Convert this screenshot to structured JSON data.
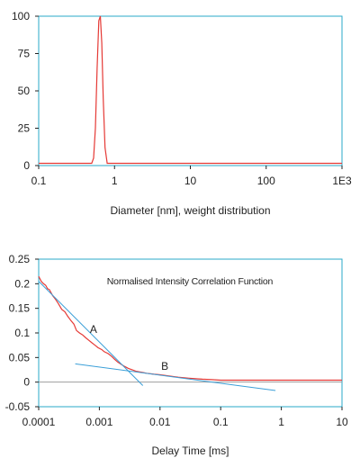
{
  "chart_data": [
    {
      "type": "line",
      "title": "",
      "xlabel": "Diameter [nm], weight distribution",
      "ylabel": "",
      "x_scale": "log",
      "xlim": [
        0.1,
        1000
      ],
      "ylim": [
        0,
        100
      ],
      "x_ticks": [
        0.1,
        1,
        10,
        100,
        1000
      ],
      "x_tick_labels": [
        "0.1",
        "1",
        "10",
        "100",
        "1E3"
      ],
      "y_ticks": [
        0,
        25,
        50,
        75,
        100
      ],
      "y_tick_labels": [
        "0",
        "25",
        "50",
        "75",
        "100"
      ],
      "grid": false,
      "baseline_value": 1.5,
      "colors": {
        "curve": "#e53935",
        "frame": "#2aa9c9"
      },
      "series": [
        {
          "x": [
            0.1,
            0.5,
            0.53,
            0.56,
            0.59,
            0.62,
            0.65,
            0.68,
            0.71,
            0.75,
            0.8,
            1000
          ],
          "values": [
            1.5,
            1.5,
            5,
            25,
            65,
            97,
            100,
            82,
            45,
            12,
            1.5,
            1.5
          ]
        }
      ]
    },
    {
      "type": "line",
      "title": "Normalised Intensity Correlation Function",
      "xlabel": "Delay Time [ms]",
      "ylabel": "",
      "x_scale": "log",
      "xlim": [
        0.0001,
        10
      ],
      "ylim": [
        -0.05,
        0.25
      ],
      "x_ticks": [
        0.0001,
        0.001,
        0.01,
        0.1,
        1,
        10
      ],
      "x_tick_labels": [
        "0.0001",
        "0.001",
        "0.01",
        "0.1",
        "1",
        "10"
      ],
      "y_ticks": [
        -0.05,
        0,
        0.05,
        0.1,
        0.15,
        0.2,
        0.25
      ],
      "y_tick_labels": [
        "-0.05",
        "0",
        "0.05",
        "0.1",
        "0.15",
        "0.2",
        "0.25"
      ],
      "grid": false,
      "zero_line": true,
      "colors": {
        "data": "#e53935",
        "fit": "#3b9fd8",
        "frame": "#2aa9c9"
      },
      "annotations": [
        {
          "text": "A",
          "x": 0.0008,
          "y": 0.1
        },
        {
          "text": "B",
          "x": 0.012,
          "y": 0.025
        }
      ],
      "series": [
        {
          "x": [
            0.0001,
            0.00011,
            0.00012,
            0.00013,
            0.00014,
            0.00015,
            0.00017,
            0.00019,
            0.00021,
            0.00024,
            0.00027,
            0.0003,
            0.00034,
            0.00038,
            0.00042,
            0.00047,
            0.00053,
            0.0006,
            0.00067,
            0.00075,
            0.00085,
            0.00095,
            0.0011,
            0.0012,
            0.0014,
            0.0016,
            0.0018,
            0.002,
            0.0023,
            0.0026,
            0.003,
            0.0035,
            0.004,
            0.005,
            0.006,
            0.008,
            0.01,
            0.015,
            0.02,
            0.03,
            0.05,
            0.07,
            0.1,
            0.2,
            0.5,
            1,
            2,
            5,
            10
          ],
          "values": [
            0.215,
            0.205,
            0.2,
            0.197,
            0.19,
            0.188,
            0.176,
            0.168,
            0.16,
            0.148,
            0.143,
            0.134,
            0.125,
            0.118,
            0.105,
            0.1,
            0.096,
            0.09,
            0.085,
            0.08,
            0.075,
            0.07,
            0.066,
            0.062,
            0.058,
            0.052,
            0.046,
            0.041,
            0.036,
            0.032,
            0.028,
            0.025,
            0.022,
            0.02,
            0.018,
            0.016,
            0.015,
            0.012,
            0.01,
            0.008,
            0.006,
            0.005,
            0.004,
            0.004,
            0.004,
            0.004,
            0.004,
            0.004,
            0.004
          ]
        },
        {
          "x": [
            0.0001,
            0.0052
          ],
          "values": [
            0.205,
            -0.007
          ]
        },
        {
          "x": [
            0.0004,
            0.8
          ],
          "values": [
            0.037,
            -0.017
          ]
        }
      ]
    }
  ]
}
